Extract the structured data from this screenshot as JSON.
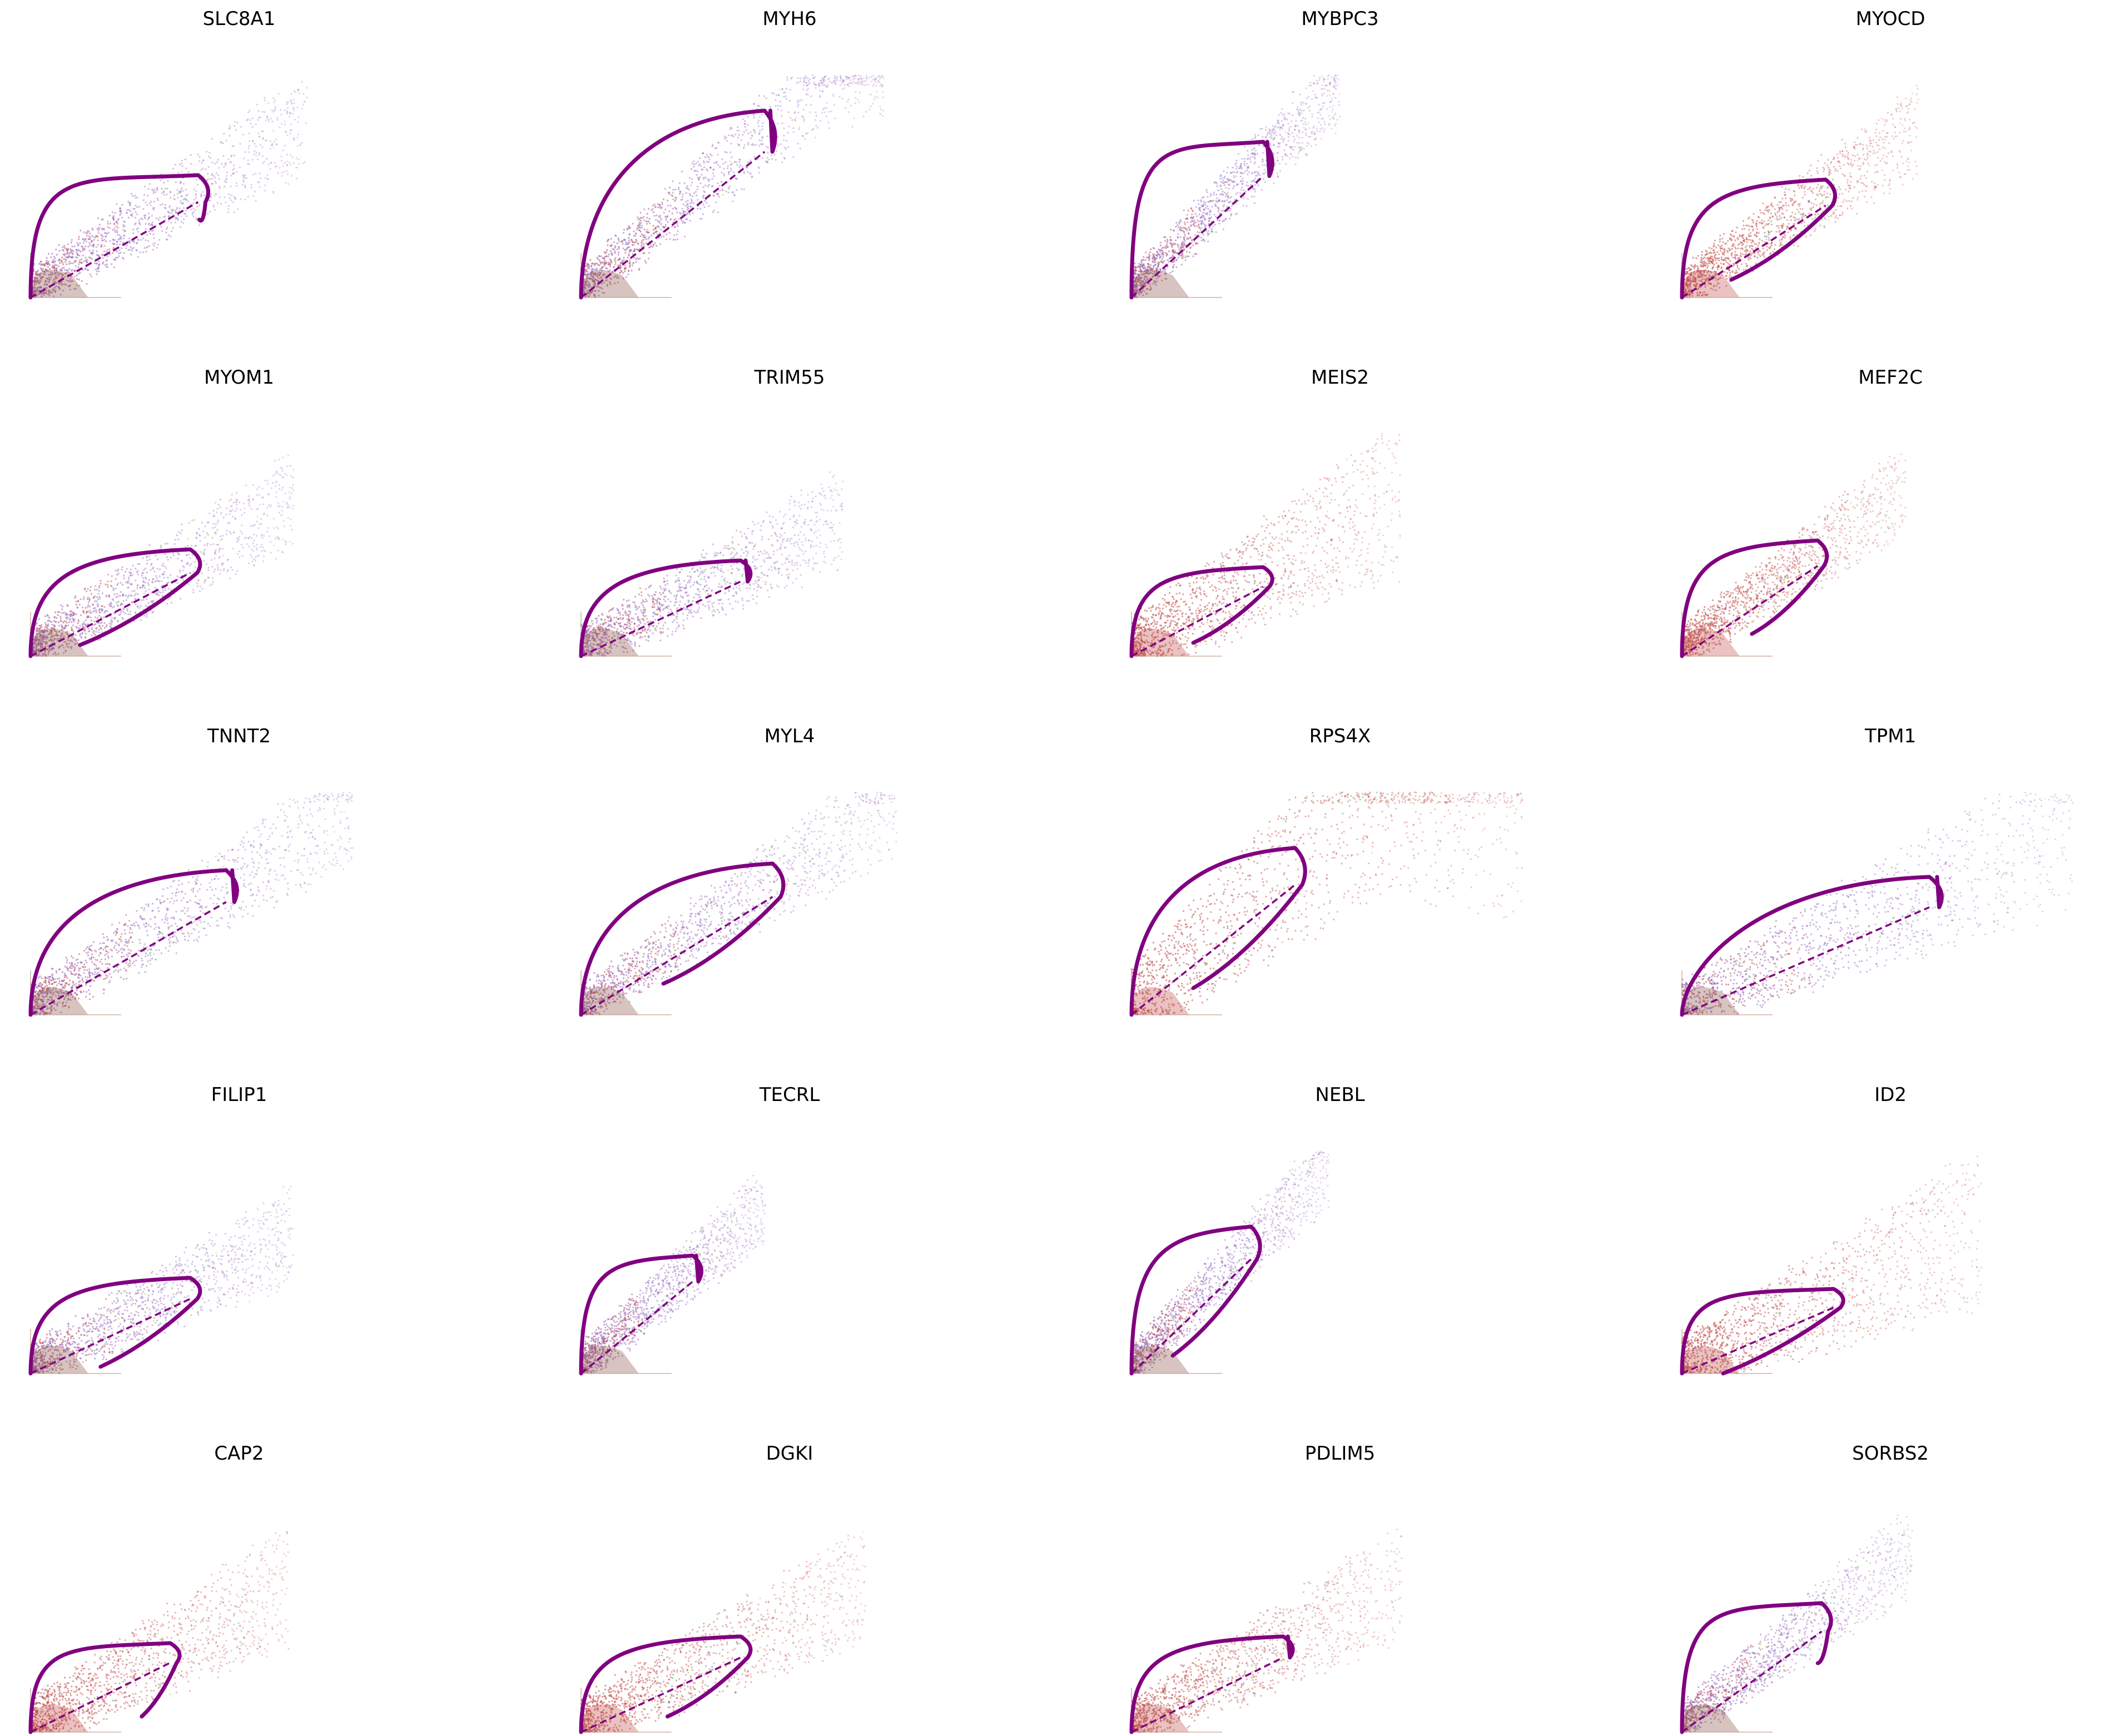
{
  "chart_data": {
    "type": "scatter",
    "layout": {
      "rows": 5,
      "columns": 4
    },
    "colors": {
      "fit_curve": "#800080",
      "cells": [
        "#9467bd",
        "#c0504d",
        "#8c564b",
        "#2ca02c",
        "#1f77b4",
        "#bcbd22",
        "#e377c2"
      ]
    },
    "panels": [
      {
        "title": "SLC8A1",
        "dominant_color": "#9467bd",
        "spread": 1.0,
        "curve": {
          "upper_end": [
            0.42,
            0.55
          ],
          "lower_end": [
            0.41,
            0.35
          ],
          "ctrl": [
            0.0,
            0.6
          ]
        }
      },
      {
        "title": "MYH6",
        "dominant_color": "#9467bd",
        "spread": 1.0,
        "curve": {
          "upper_end": [
            0.46,
            0.84
          ],
          "lower_end": [
            0.46,
            0.84
          ],
          "ctrl": [
            0.0,
            0.4
          ]
        }
      },
      {
        "title": "MYBPC3",
        "dominant_color": "#9467bd",
        "spread": 0.9,
        "curve": {
          "upper_end": [
            0.33,
            0.7
          ],
          "lower_end": [
            0.33,
            0.7
          ],
          "ctrl": [
            0.0,
            0.75
          ]
        }
      },
      {
        "title": "MYOCD",
        "dominant_color": "#c0504d",
        "spread": 1.0,
        "curve": {
          "upper_end": [
            0.36,
            0.53
          ],
          "lower_end": [
            0.12,
            0.08
          ],
          "ctrl": [
            0.0,
            0.45
          ]
        }
      },
      {
        "title": "MYOM1",
        "dominant_color": "#9467bd",
        "spread": 1.0,
        "curve": {
          "upper_end": [
            0.4,
            0.48
          ],
          "lower_end": [
            0.12,
            0.05
          ],
          "ctrl": [
            0.0,
            0.35
          ]
        }
      },
      {
        "title": "TRIM55",
        "dominant_color": "#9467bd",
        "spread": 1.0,
        "curve": {
          "upper_end": [
            0.4,
            0.43
          ],
          "lower_end": [
            0.4,
            0.43
          ],
          "ctrl": [
            0.0,
            0.3
          ]
        }
      },
      {
        "title": "MEIS2",
        "dominant_color": "#c0504d",
        "spread": 1.6,
        "curve": {
          "upper_end": [
            0.33,
            0.4
          ],
          "lower_end": [
            0.15,
            0.06
          ],
          "ctrl": [
            0.0,
            0.35
          ]
        }
      },
      {
        "title": "MEF2C",
        "dominant_color": "#c0504d",
        "spread": 1.0,
        "curve": {
          "upper_end": [
            0.34,
            0.52
          ],
          "lower_end": [
            0.17,
            0.1
          ],
          "ctrl": [
            0.0,
            0.45
          ]
        }
      },
      {
        "title": "TNNT2",
        "dominant_color": "#9467bd",
        "spread": 1.0,
        "curve": {
          "upper_end": [
            0.49,
            0.65
          ],
          "lower_end": [
            0.49,
            0.65
          ],
          "ctrl": [
            0.0,
            0.35
          ]
        }
      },
      {
        "title": "MYL4",
        "dominant_color": "#9467bd",
        "spread": 1.0,
        "curve": {
          "upper_end": [
            0.48,
            0.68
          ],
          "lower_end": [
            0.2,
            0.14
          ],
          "ctrl": [
            0.0,
            0.35
          ]
        }
      },
      {
        "title": "RPS4X",
        "dominant_color": "#c0504d",
        "spread": 2.2,
        "curve": {
          "upper_end": [
            0.41,
            0.75
          ],
          "lower_end": [
            0.15,
            0.12
          ],
          "ctrl": [
            0.0,
            0.4
          ]
        }
      },
      {
        "title": "TPM1",
        "dominant_color": "#9467bd",
        "spread": 1.3,
        "curve": {
          "upper_end": [
            0.62,
            0.62
          ],
          "lower_end": [
            0.62,
            0.62
          ],
          "ctrl": [
            0.0,
            0.18
          ]
        }
      },
      {
        "title": "FILIP1",
        "dominant_color": "#9467bd",
        "spread": 1.0,
        "curve": {
          "upper_end": [
            0.4,
            0.43
          ],
          "lower_end": [
            0.17,
            0.03
          ],
          "ctrl": [
            0.0,
            0.35
          ]
        }
      },
      {
        "title": "TECRL",
        "dominant_color": "#9467bd",
        "spread": 1.0,
        "curve": {
          "upper_end": [
            0.28,
            0.53
          ],
          "lower_end": [
            0.28,
            0.53
          ],
          "ctrl": [
            0.0,
            0.5
          ]
        }
      },
      {
        "title": "NEBL",
        "dominant_color": "#9467bd",
        "spread": 1.0,
        "curve": {
          "upper_end": [
            0.3,
            0.66
          ],
          "lower_end": [
            0.1,
            0.08
          ],
          "ctrl": [
            0.0,
            0.55
          ]
        }
      },
      {
        "title": "ID2",
        "dominant_color": "#c0504d",
        "spread": 1.5,
        "curve": {
          "upper_end": [
            0.38,
            0.38
          ],
          "lower_end": [
            0.1,
            0.0
          ],
          "ctrl": [
            0.0,
            0.38
          ]
        }
      },
      {
        "title": "CAP2",
        "dominant_color": "#c0504d",
        "spread": 1.3,
        "curve": {
          "upper_end": [
            0.35,
            0.4
          ],
          "lower_end": [
            0.27,
            0.07
          ],
          "ctrl": [
            0.0,
            0.4
          ]
        }
      },
      {
        "title": "DGKI",
        "dominant_color": "#c0504d",
        "spread": 1.2,
        "curve": {
          "upper_end": [
            0.4,
            0.43
          ],
          "lower_end": [
            0.21,
            0.07
          ],
          "ctrl": [
            0.0,
            0.35
          ]
        }
      },
      {
        "title": "PDLIM5",
        "dominant_color": "#c0504d",
        "spread": 1.2,
        "curve": {
          "upper_end": [
            0.38,
            0.43
          ],
          "lower_end": [
            0.38,
            0.43
          ],
          "ctrl": [
            0.0,
            0.35
          ]
        }
      },
      {
        "title": "SORBS2",
        "dominant_color": "#9467bd",
        "spread": 1.0,
        "curve": {
          "upper_end": [
            0.35,
            0.58
          ],
          "lower_end": [
            0.33,
            0.31
          ],
          "ctrl": [
            0.0,
            0.6
          ]
        }
      }
    ]
  }
}
